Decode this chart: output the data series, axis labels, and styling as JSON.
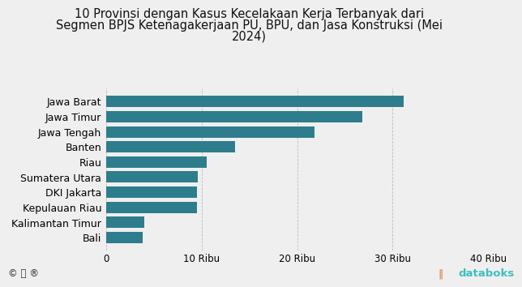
{
  "title_line1": "10 Provinsi dengan Kasus Kecelakaan Kerja Terbanyak dari",
  "title_line2": "Segmen BPJS Ketenagakerjaan PU, BPU, dan Jasa Konstruksi (Mei",
  "title_year": "2024)",
  "provinces": [
    "Jawa Barat",
    "Jawa Timur",
    "Jawa Tengah",
    "Banten",
    "Riau",
    "Sumatera Utara",
    "DKI Jakarta",
    "Kepulauan Riau",
    "Kalimantan Timur",
    "Bali"
  ],
  "values": [
    31200,
    26800,
    21800,
    13500,
    10500,
    9600,
    9500,
    9500,
    4000,
    3800
  ],
  "bar_color": "#2E7D8C",
  "bg_color": "#efefef",
  "xlim": [
    0,
    40000
  ],
  "xtick_positions": [
    0,
    10000,
    20000,
    30000,
    40000
  ],
  "xtick_labels": [
    "0",
    "10 Ribu",
    "20 Ribu",
    "30 Ribu",
    "40 Ribu"
  ],
  "title_fontsize": 10.5,
  "label_fontsize": 9,
  "tick_fontsize": 8.5,
  "databoks_color_text": "#3ebfbf",
  "databoks_icon_color": "#e07030",
  "footer_icon_color": "#333333"
}
